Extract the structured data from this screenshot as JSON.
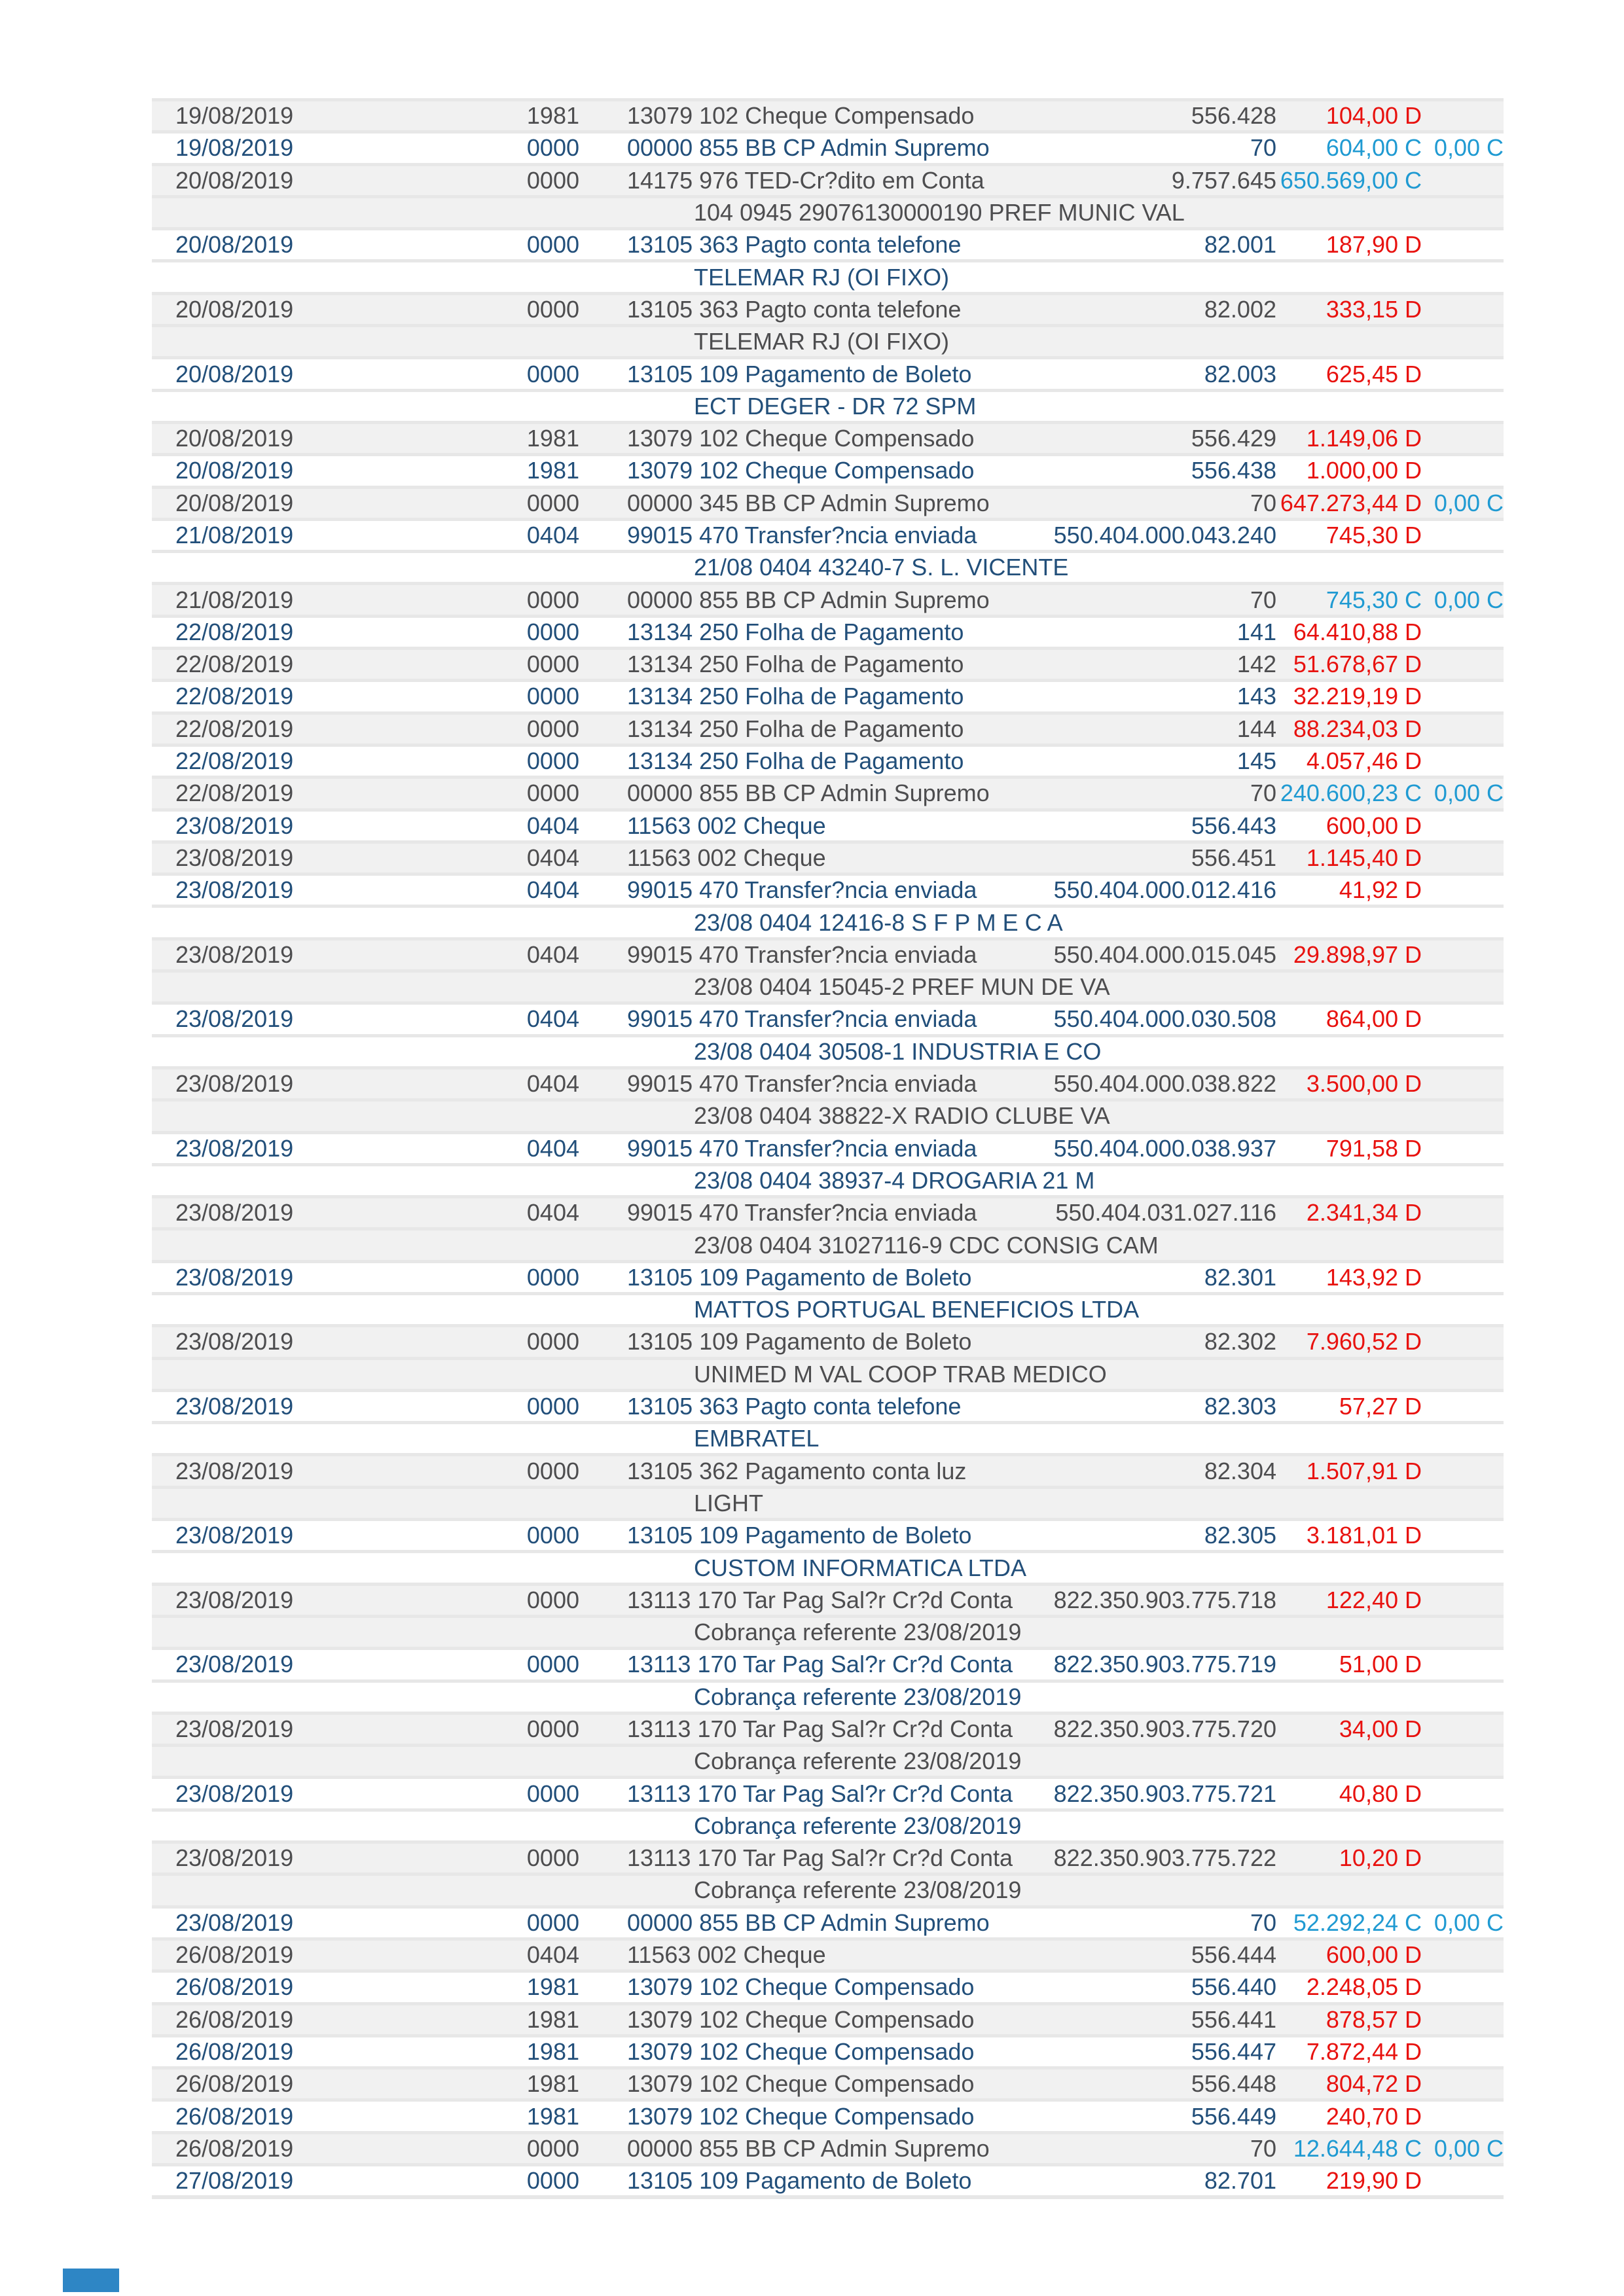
{
  "colors": {
    "debit": "#e8120f",
    "credit": "#1f9ad2",
    "text_navy": "#224f7a",
    "text_gray": "#4d4d4f",
    "row_shade": "#f1f1f1",
    "separator": "#e7e7e7",
    "footer_block": "#2e86c5"
  },
  "transactions": [
    {
      "date": "19/08/2019",
      "agency": "1981",
      "desc": "13079 102 Cheque Compensado",
      "doc": "556.428",
      "value": "104,00",
      "flag": "D",
      "extra": "",
      "detail": ""
    },
    {
      "date": "19/08/2019",
      "agency": "0000",
      "desc": "00000 855 BB CP Admin Supremo",
      "doc": "70",
      "value": "604,00",
      "flag": "C",
      "extra": "0,00 C",
      "detail": ""
    },
    {
      "date": "20/08/2019",
      "agency": "0000",
      "desc": "14175 976 TED-Cr?dito em Conta",
      "doc": "9.757.645",
      "value": "650.569,00",
      "flag": "C",
      "extra": "",
      "detail": "104 0945 29076130000190 PREF MUNIC VAL"
    },
    {
      "date": "20/08/2019",
      "agency": "0000",
      "desc": "13105 363 Pagto conta telefone",
      "doc": "82.001",
      "value": "187,90",
      "flag": "D",
      "extra": "",
      "detail": "TELEMAR RJ (OI FIXO)"
    },
    {
      "date": "20/08/2019",
      "agency": "0000",
      "desc": "13105 363 Pagto conta telefone",
      "doc": "82.002",
      "value": "333,15",
      "flag": "D",
      "extra": "",
      "detail": "TELEMAR RJ (OI FIXO)"
    },
    {
      "date": "20/08/2019",
      "agency": "0000",
      "desc": "13105 109 Pagamento de Boleto",
      "doc": "82.003",
      "value": "625,45",
      "flag": "D",
      "extra": "",
      "detail": "ECT DEGER - DR 72 SPM"
    },
    {
      "date": "20/08/2019",
      "agency": "1981",
      "desc": "13079 102 Cheque Compensado",
      "doc": "556.429",
      "value": "1.149,06",
      "flag": "D",
      "extra": "",
      "detail": ""
    },
    {
      "date": "20/08/2019",
      "agency": "1981",
      "desc": "13079 102 Cheque Compensado",
      "doc": "556.438",
      "value": "1.000,00",
      "flag": "D",
      "extra": "",
      "detail": ""
    },
    {
      "date": "20/08/2019",
      "agency": "0000",
      "desc": "00000 345 BB CP Admin Supremo",
      "doc": "70",
      "value": "647.273,44",
      "flag": "D",
      "extra": "0,00 C",
      "detail": ""
    },
    {
      "date": "21/08/2019",
      "agency": "0404",
      "desc": "99015 470 Transfer?ncia enviada",
      "doc": "550.404.000.043.240",
      "value": "745,30",
      "flag": "D",
      "extra": "",
      "detail": "21/08 0404 43240-7 S. L. VICENTE"
    },
    {
      "date": "21/08/2019",
      "agency": "0000",
      "desc": "00000 855 BB CP Admin Supremo",
      "doc": "70",
      "value": "745,30",
      "flag": "C",
      "extra": "0,00 C",
      "detail": ""
    },
    {
      "date": "22/08/2019",
      "agency": "0000",
      "desc": "13134 250 Folha de Pagamento",
      "doc": "141",
      "value": "64.410,88",
      "flag": "D",
      "extra": "",
      "detail": ""
    },
    {
      "date": "22/08/2019",
      "agency": "0000",
      "desc": "13134 250 Folha de Pagamento",
      "doc": "142",
      "value": "51.678,67",
      "flag": "D",
      "extra": "",
      "detail": ""
    },
    {
      "date": "22/08/2019",
      "agency": "0000",
      "desc": "13134 250 Folha de Pagamento",
      "doc": "143",
      "value": "32.219,19",
      "flag": "D",
      "extra": "",
      "detail": ""
    },
    {
      "date": "22/08/2019",
      "agency": "0000",
      "desc": "13134 250 Folha de Pagamento",
      "doc": "144",
      "value": "88.234,03",
      "flag": "D",
      "extra": "",
      "detail": ""
    },
    {
      "date": "22/08/2019",
      "agency": "0000",
      "desc": "13134 250 Folha de Pagamento",
      "doc": "145",
      "value": "4.057,46",
      "flag": "D",
      "extra": "",
      "detail": ""
    },
    {
      "date": "22/08/2019",
      "agency": "0000",
      "desc": "00000 855 BB CP Admin Supremo",
      "doc": "70",
      "value": "240.600,23",
      "flag": "C",
      "extra": "0,00 C",
      "detail": ""
    },
    {
      "date": "23/08/2019",
      "agency": "0404",
      "desc": "11563 002 Cheque",
      "doc": "556.443",
      "value": "600,00",
      "flag": "D",
      "extra": "",
      "detail": ""
    },
    {
      "date": "23/08/2019",
      "agency": "0404",
      "desc": "11563 002 Cheque",
      "doc": "556.451",
      "value": "1.145,40",
      "flag": "D",
      "extra": "",
      "detail": ""
    },
    {
      "date": "23/08/2019",
      "agency": "0404",
      "desc": "99015 470 Transfer?ncia enviada",
      "doc": "550.404.000.012.416",
      "value": "41,92",
      "flag": "D",
      "extra": "",
      "detail": "23/08 0404 12416-8 S F P M E C A"
    },
    {
      "date": "23/08/2019",
      "agency": "0404",
      "desc": "99015 470 Transfer?ncia enviada",
      "doc": "550.404.000.015.045",
      "value": "29.898,97",
      "flag": "D",
      "extra": "",
      "detail": "23/08 0404 15045-2 PREF MUN DE VA"
    },
    {
      "date": "23/08/2019",
      "agency": "0404",
      "desc": "99015 470 Transfer?ncia enviada",
      "doc": "550.404.000.030.508",
      "value": "864,00",
      "flag": "D",
      "extra": "",
      "detail": "23/08 0404 30508-1 INDUSTRIA E CO"
    },
    {
      "date": "23/08/2019",
      "agency": "0404",
      "desc": "99015 470 Transfer?ncia enviada",
      "doc": "550.404.000.038.822",
      "value": "3.500,00",
      "flag": "D",
      "extra": "",
      "detail": "23/08 0404 38822-X RADIO CLUBE VA"
    },
    {
      "date": "23/08/2019",
      "agency": "0404",
      "desc": "99015 470 Transfer?ncia enviada",
      "doc": "550.404.000.038.937",
      "value": "791,58",
      "flag": "D",
      "extra": "",
      "detail": "23/08 0404 38937-4 DROGARIA 21 M"
    },
    {
      "date": "23/08/2019",
      "agency": "0404",
      "desc": "99015 470 Transfer?ncia enviada",
      "doc": "550.404.031.027.116",
      "value": "2.341,34",
      "flag": "D",
      "extra": "",
      "detail": "23/08 0404 31027116-9 CDC CONSIG CAM"
    },
    {
      "date": "23/08/2019",
      "agency": "0000",
      "desc": "13105 109 Pagamento de Boleto",
      "doc": "82.301",
      "value": "143,92",
      "flag": "D",
      "extra": "",
      "detail": "MATTOS PORTUGAL BENEFICIOS LTDA"
    },
    {
      "date": "23/08/2019",
      "agency": "0000",
      "desc": "13105 109 Pagamento de Boleto",
      "doc": "82.302",
      "value": "7.960,52",
      "flag": "D",
      "extra": "",
      "detail": "UNIMED M VAL COOP TRAB MEDICO"
    },
    {
      "date": "23/08/2019",
      "agency": "0000",
      "desc": "13105 363 Pagto conta telefone",
      "doc": "82.303",
      "value": "57,27",
      "flag": "D",
      "extra": "",
      "detail": "EMBRATEL"
    },
    {
      "date": "23/08/2019",
      "agency": "0000",
      "desc": "13105 362 Pagamento conta luz",
      "doc": "82.304",
      "value": "1.507,91",
      "flag": "D",
      "extra": "",
      "detail": "LIGHT"
    },
    {
      "date": "23/08/2019",
      "agency": "0000",
      "desc": "13105 109 Pagamento de Boleto",
      "doc": "82.305",
      "value": "3.181,01",
      "flag": "D",
      "extra": "",
      "detail": "CUSTOM INFORMATICA LTDA"
    },
    {
      "date": "23/08/2019",
      "agency": "0000",
      "desc": "13113 170 Tar Pag Sal?r Cr?d Conta",
      "doc": "822.350.903.775.718",
      "value": "122,40",
      "flag": "D",
      "extra": "",
      "detail": "Cobrança referente 23/08/2019"
    },
    {
      "date": "23/08/2019",
      "agency": "0000",
      "desc": "13113 170 Tar Pag Sal?r Cr?d Conta",
      "doc": "822.350.903.775.719",
      "value": "51,00",
      "flag": "D",
      "extra": "",
      "detail": "Cobrança referente 23/08/2019"
    },
    {
      "date": "23/08/2019",
      "agency": "0000",
      "desc": "13113 170 Tar Pag Sal?r Cr?d Conta",
      "doc": "822.350.903.775.720",
      "value": "34,00",
      "flag": "D",
      "extra": "",
      "detail": "Cobrança referente 23/08/2019"
    },
    {
      "date": "23/08/2019",
      "agency": "0000",
      "desc": "13113 170 Tar Pag Sal?r Cr?d Conta",
      "doc": "822.350.903.775.721",
      "value": "40,80",
      "flag": "D",
      "extra": "",
      "detail": "Cobrança referente 23/08/2019"
    },
    {
      "date": "23/08/2019",
      "agency": "0000",
      "desc": "13113 170 Tar Pag Sal?r Cr?d Conta",
      "doc": "822.350.903.775.722",
      "value": "10,20",
      "flag": "D",
      "extra": "",
      "detail": "Cobrança referente 23/08/2019"
    },
    {
      "date": "23/08/2019",
      "agency": "0000",
      "desc": "00000 855 BB CP Admin Supremo",
      "doc": "70",
      "value": "52.292,24",
      "flag": "C",
      "extra": "0,00 C",
      "detail": ""
    },
    {
      "date": "26/08/2019",
      "agency": "0404",
      "desc": "11563 002 Cheque",
      "doc": "556.444",
      "value": "600,00",
      "flag": "D",
      "extra": "",
      "detail": ""
    },
    {
      "date": "26/08/2019",
      "agency": "1981",
      "desc": "13079 102 Cheque Compensado",
      "doc": "556.440",
      "value": "2.248,05",
      "flag": "D",
      "extra": "",
      "detail": ""
    },
    {
      "date": "26/08/2019",
      "agency": "1981",
      "desc": "13079 102 Cheque Compensado",
      "doc": "556.441",
      "value": "878,57",
      "flag": "D",
      "extra": "",
      "detail": ""
    },
    {
      "date": "26/08/2019",
      "agency": "1981",
      "desc": "13079 102 Cheque Compensado",
      "doc": "556.447",
      "value": "7.872,44",
      "flag": "D",
      "extra": "",
      "detail": ""
    },
    {
      "date": "26/08/2019",
      "agency": "1981",
      "desc": "13079 102 Cheque Compensado",
      "doc": "556.448",
      "value": "804,72",
      "flag": "D",
      "extra": "",
      "detail": ""
    },
    {
      "date": "26/08/2019",
      "agency": "1981",
      "desc": "13079 102 Cheque Compensado",
      "doc": "556.449",
      "value": "240,70",
      "flag": "D",
      "extra": "",
      "detail": ""
    },
    {
      "date": "26/08/2019",
      "agency": "0000",
      "desc": "00000 855 BB CP Admin Supremo",
      "doc": "70",
      "value": "12.644,48",
      "flag": "C",
      "extra": "0,00 C",
      "detail": ""
    },
    {
      "date": "27/08/2019",
      "agency": "0000",
      "desc": "13105 109 Pagamento de Boleto",
      "doc": "82.701",
      "value": "219,90",
      "flag": "D",
      "extra": "",
      "detail": ""
    }
  ]
}
